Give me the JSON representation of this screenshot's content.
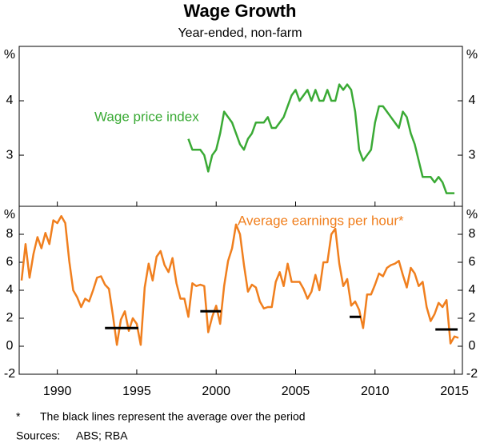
{
  "chart_data": [
    {
      "type": "line",
      "title": "Wage Growth",
      "subtitle": "Year-ended, non-farm",
      "ylabel": "%",
      "xlim": [
        1987.6,
        2015.5
      ],
      "ylim": [
        2.06,
        5
      ],
      "yticks": [
        3,
        4
      ],
      "series": [
        {
          "name": "Wage price index",
          "color": "#3aaa35",
          "x": [
            1998.25,
            1998.5,
            1998.75,
            1999,
            1999.25,
            1999.5,
            1999.75,
            2000,
            2000.25,
            2000.5,
            2000.75,
            2001,
            2001.25,
            2001.5,
            2001.75,
            2002,
            2002.25,
            2002.5,
            2002.75,
            2003,
            2003.25,
            2003.5,
            2003.75,
            2004,
            2004.25,
            2004.5,
            2004.75,
            2005,
            2005.25,
            2005.5,
            2005.75,
            2006,
            2006.25,
            2006.5,
            2006.75,
            2007,
            2007.25,
            2007.5,
            2007.75,
            2008,
            2008.25,
            2008.5,
            2008.75,
            2009,
            2009.25,
            2009.5,
            2009.75,
            2010,
            2010.25,
            2010.5,
            2010.75,
            2011,
            2011.25,
            2011.5,
            2011.75,
            2012,
            2012.25,
            2012.5,
            2012.75,
            2013,
            2013.25,
            2013.5,
            2013.75,
            2014,
            2014.25,
            2014.5,
            2014.75,
            2015
          ],
          "values": [
            3.3,
            3.1,
            3.1,
            3.1,
            3.0,
            2.7,
            3.0,
            3.1,
            3.4,
            3.8,
            3.7,
            3.6,
            3.4,
            3.2,
            3.1,
            3.3,
            3.4,
            3.6,
            3.6,
            3.6,
            3.7,
            3.5,
            3.5,
            3.6,
            3.7,
            3.9,
            4.1,
            4.2,
            4.0,
            4.1,
            4.2,
            4.0,
            4.2,
            4.0,
            4.0,
            4.2,
            4.0,
            4.0,
            4.3,
            4.2,
            4.3,
            4.2,
            3.8,
            3.1,
            2.9,
            3.0,
            3.1,
            3.6,
            3.9,
            3.9,
            3.8,
            3.7,
            3.6,
            3.5,
            3.8,
            3.7,
            3.4,
            3.2,
            2.9,
            2.6,
            2.6,
            2.6,
            2.5,
            2.6,
            2.5,
            2.3,
            2.3,
            2.3
          ]
        }
      ]
    },
    {
      "type": "line",
      "ylabel": "%",
      "xlim": [
        1987.6,
        2015.5
      ],
      "xticks": [
        1990,
        1995,
        2000,
        2005,
        2010,
        2015
      ],
      "ylim": [
        -2,
        10
      ],
      "yticks": [
        -2,
        0,
        2,
        4,
        6,
        8
      ],
      "series": [
        {
          "name": "Average earnings per hour*",
          "color": "#f07f1e",
          "x": [
            1987.75,
            1988,
            1988.25,
            1988.5,
            1988.75,
            1989,
            1989.25,
            1989.5,
            1989.75,
            1990,
            1990.25,
            1990.5,
            1990.75,
            1991,
            1991.25,
            1991.5,
            1991.75,
            1992,
            1992.25,
            1992.5,
            1992.75,
            1993,
            1993.25,
            1993.5,
            1993.75,
            1994,
            1994.25,
            1994.5,
            1994.75,
            1995,
            1995.25,
            1995.5,
            1995.75,
            1996,
            1996.25,
            1996.5,
            1996.75,
            1997,
            1997.25,
            1997.5,
            1997.75,
            1998,
            1998.25,
            1998.5,
            1998.75,
            1999,
            1999.25,
            1999.5,
            1999.75,
            2000,
            2000.25,
            2000.5,
            2000.75,
            2001,
            2001.25,
            2001.5,
            2001.75,
            2002,
            2002.25,
            2002.5,
            2002.75,
            2003,
            2003.25,
            2003.5,
            2003.75,
            2004,
            2004.25,
            2004.5,
            2004.75,
            2005,
            2005.25,
            2005.5,
            2005.75,
            2006,
            2006.25,
            2006.5,
            2006.75,
            2007,
            2007.25,
            2007.5,
            2007.75,
            2008,
            2008.25,
            2008.5,
            2008.75,
            2009,
            2009.25,
            2009.5,
            2009.75,
            2010,
            2010.25,
            2010.5,
            2010.75,
            2011,
            2011.25,
            2011.5,
            2011.75,
            2012,
            2012.25,
            2012.5,
            2012.75,
            2013,
            2013.25,
            2013.5,
            2013.75,
            2014,
            2014.25,
            2014.5,
            2014.75,
            2015,
            2015.25
          ],
          "values": [
            4.7,
            7.3,
            4.9,
            6.6,
            7.8,
            7.0,
            8.1,
            7.3,
            9.0,
            8.8,
            9.3,
            8.8,
            6.1,
            4.0,
            3.5,
            2.8,
            3.4,
            3.2,
            4.0,
            4.9,
            5.0,
            4.4,
            4.1,
            2.2,
            0.1,
            1.9,
            2.5,
            1.1,
            2.0,
            1.6,
            0.1,
            4.2,
            5.9,
            4.7,
            6.4,
            6.8,
            5.8,
            5.3,
            6.3,
            4.5,
            3.4,
            3.4,
            2.1,
            4.5,
            4.3,
            4.4,
            4.3,
            1.0,
            2.1,
            2.9,
            1.6,
            4.3,
            6.1,
            7.0,
            8.7,
            8.0,
            5.8,
            3.9,
            4.4,
            4.2,
            3.2,
            2.7,
            2.8,
            2.8,
            4.6,
            5.3,
            4.3,
            5.9,
            4.6,
            4.6,
            4.6,
            4.1,
            3.4,
            3.9,
            5.1,
            4.0,
            6.0,
            6.0,
            8.0,
            8.4,
            5.9,
            4.3,
            4.8,
            2.9,
            3.2,
            2.6,
            1.3,
            3.7,
            3.7,
            4.4,
            5.2,
            5.0,
            5.6,
            5.8,
            5.9,
            6.1,
            5.1,
            4.2,
            5.6,
            5.2,
            4.3,
            4.6,
            2.8,
            1.8,
            2.3,
            3.1,
            2.8,
            3.3,
            0.2,
            0.7,
            0.6
          ]
        }
      ],
      "averages": [
        {
          "x": [
            1993,
            1995.1
          ],
          "value": 1.3
        },
        {
          "x": [
            1999,
            2000.3
          ],
          "value": 2.5
        },
        {
          "x": [
            2008.4,
            2009.1
          ],
          "value": 2.1
        },
        {
          "x": [
            2013.8,
            2015.2
          ],
          "value": 1.2
        }
      ],
      "averages_color": "#000000"
    }
  ],
  "notes": {
    "marker": "*",
    "footnote": "The black lines represent the average over the period",
    "sources_label": "Sources:",
    "sources": "ABS; RBA"
  }
}
